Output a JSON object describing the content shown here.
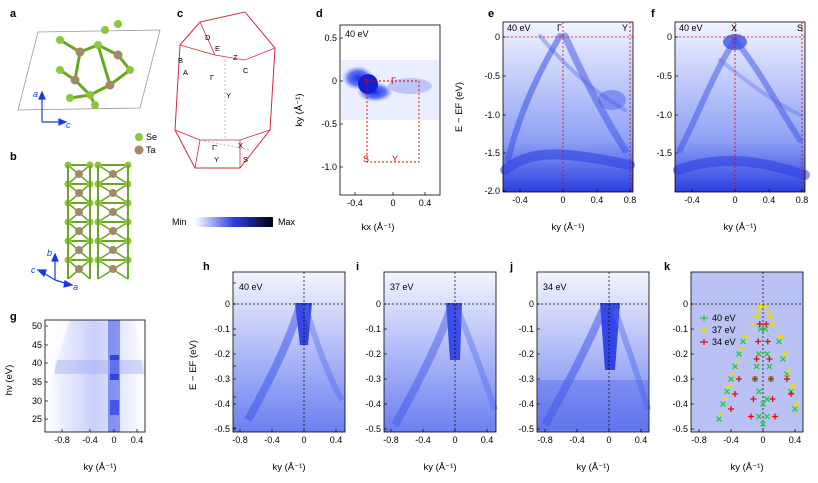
{
  "panels": {
    "a": {
      "letter": "a",
      "axis_a": "a",
      "axis_c": "c",
      "legend": [
        {
          "label": "Se",
          "color": "#8dc63f"
        },
        {
          "label": "Ta",
          "color": "#a08a6a"
        }
      ]
    },
    "b": {
      "letter": "b",
      "axis_b": "b",
      "axis_c": "c",
      "axis_a": "a"
    },
    "c": {
      "letter": "c",
      "points": [
        "D",
        "E",
        "B",
        "A",
        "Z",
        "C",
        "Γ",
        "Y",
        "Γ'",
        "X",
        "Y",
        "S"
      ],
      "colorbar_min": "Min",
      "colorbar_max": "Max"
    },
    "d": {
      "letter": "d",
      "energy": "40 eV",
      "corner_labels": [
        "X",
        "Γ",
        "S",
        "Y"
      ],
      "xlabel": "kx (Å⁻¹)",
      "ylabel": "ky (Å⁻¹)",
      "xticks": [
        "-0.4",
        "0",
        "0.4"
      ],
      "yticks": [
        "0.5",
        "0",
        "-0.5",
        "-1.0"
      ]
    },
    "e": {
      "letter": "e",
      "energy": "40 eV",
      "points": [
        "Γ",
        "Y"
      ],
      "xlabel": "ky (Å⁻¹)",
      "ylabel": "E − EF (eV)",
      "xticks": [
        "-0.4",
        "0",
        "0.4",
        "0.8"
      ],
      "yticks": [
        "0",
        "-0.5",
        "-1.0",
        "-1.5",
        "-2.0"
      ]
    },
    "f": {
      "letter": "f",
      "energy": "40 eV",
      "points": [
        "X",
        "S"
      ],
      "xlabel": "ky (Å⁻¹)",
      "xticks": [
        "-0.4",
        "0",
        "0.4",
        "0.8"
      ],
      "yticks": [
        "0",
        "-0.5",
        "-1.0",
        "-1.5"
      ]
    },
    "g": {
      "letter": "g",
      "xlabel": "ky (Å⁻¹)",
      "ylabel": "hν (eV)",
      "xticks": [
        "-0.8",
        "-0.4",
        "0",
        "0.4"
      ],
      "yticks": [
        "50",
        "45",
        "40",
        "35",
        "30",
        "25"
      ]
    },
    "h": {
      "letter": "h",
      "energy": "40 eV",
      "xlabel": "ky (Å⁻¹)",
      "ylabel": "E − EF (eV)",
      "xticks": [
        "-0.8",
        "-0.4",
        "0",
        "0.4"
      ],
      "yticks": [
        "0",
        "-0.1",
        "-0.2",
        "-0.3",
        "-0.4",
        "-0.5"
      ]
    },
    "i": {
      "letter": "i",
      "energy": "37 eV",
      "xlabel": "ky (Å⁻¹)",
      "xticks": [
        "-0.8",
        "-0.4",
        "0",
        "0.4"
      ],
      "yticks": [
        "0",
        "-0.1",
        "-0.2",
        "-0.3",
        "-0.4",
        "-0.5"
      ]
    },
    "j": {
      "letter": "j",
      "energy": "34 eV",
      "xlabel": "ky (Å⁻¹)",
      "xticks": [
        "-0.8",
        "-0.4",
        "0",
        "0.4"
      ],
      "yticks": [
        "0",
        "-0.1",
        "-0.2",
        "-0.3",
        "-0.4",
        "-0.5"
      ]
    },
    "k": {
      "letter": "k",
      "xlabel": "ky (Å⁻¹)",
      "xticks": [
        "-0.8",
        "-0.4",
        "0",
        "0.4"
      ],
      "yticks": [
        "0",
        "-0.1",
        "-0.2",
        "-0.3",
        "-0.4",
        "-0.5"
      ],
      "legend": [
        {
          "label": "40 eV",
          "color": "#22cc44"
        },
        {
          "label": "37 eV",
          "color": "#e8e000"
        },
        {
          "label": "34 eV",
          "color": "#dd1111"
        }
      ]
    }
  },
  "chart_data": {
    "type": "scatter",
    "xlabel": "ky (Å⁻¹)",
    "ylabel": "E − EF (eV)",
    "xlim": [
      -0.9,
      0.5
    ],
    "ylim": [
      -0.5,
      0.05
    ],
    "series": [
      {
        "name": "40 eV",
        "color": "#22cc44",
        "x": [
          -0.55,
          -0.5,
          -0.45,
          -0.4,
          -0.35,
          -0.3,
          -0.25,
          0.2,
          0.25,
          0.3,
          0.35,
          0.4,
          -0.1,
          -0.08,
          -0.05,
          -0.03,
          0.03,
          0.05,
          0.08,
          0.1,
          -0.05,
          0.0,
          0.05,
          -0.05,
          0.0,
          0.05
        ],
        "y": [
          -0.46,
          -0.4,
          -0.35,
          -0.3,
          -0.25,
          -0.2,
          -0.15,
          -0.15,
          -0.22,
          -0.28,
          -0.35,
          -0.42,
          -0.3,
          -0.25,
          -0.2,
          -0.1,
          -0.1,
          -0.2,
          -0.25,
          -0.3,
          -0.35,
          -0.4,
          -0.45,
          -0.45,
          -0.48,
          -0.38
        ]
      },
      {
        "name": "37 eV",
        "color": "#e8e000",
        "x": [
          -0.52,
          -0.47,
          -0.42,
          -0.37,
          -0.32,
          -0.27,
          -0.22,
          0.22,
          0.27,
          0.32,
          0.37,
          0.42,
          -0.12,
          -0.09,
          -0.06,
          -0.03,
          0.03,
          0.06,
          0.09,
          0.12
        ],
        "y": [
          -0.44,
          -0.38,
          -0.33,
          -0.28,
          -0.23,
          -0.18,
          -0.13,
          -0.13,
          -0.2,
          -0.27,
          -0.33,
          -0.4,
          -0.08,
          -0.05,
          -0.03,
          -0.01,
          -0.01,
          -0.03,
          -0.05,
          -0.08
        ]
      },
      {
        "name": "34 eV",
        "color": "#dd1111",
        "x": [
          -0.15,
          -0.12,
          -0.1,
          -0.08,
          -0.06,
          -0.04,
          0.04,
          0.06,
          0.08,
          0.1,
          0.12,
          0.15,
          -0.3,
          -0.35,
          -0.4,
          0.3,
          0.35
        ],
        "y": [
          -0.45,
          -0.38,
          -0.3,
          -0.22,
          -0.15,
          -0.08,
          -0.08,
          -0.15,
          -0.22,
          -0.3,
          -0.38,
          -0.45,
          -0.3,
          -0.36,
          -0.42,
          -0.3,
          -0.36
        ]
      }
    ]
  }
}
